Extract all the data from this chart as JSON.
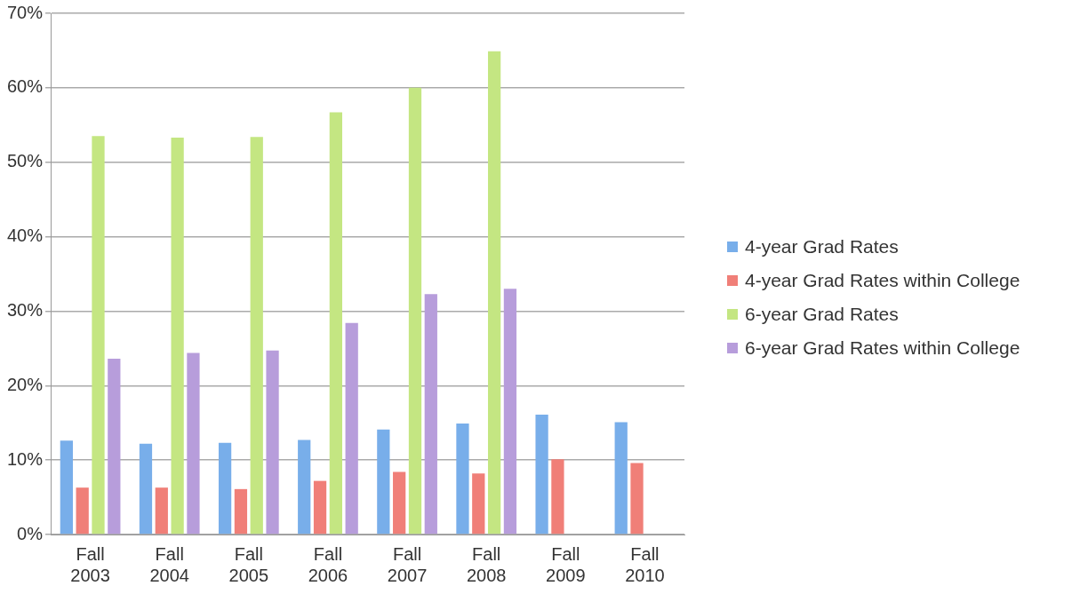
{
  "chart_data": {
    "type": "bar",
    "categories": [
      "Fall 2003",
      "Fall 2004",
      "Fall 2005",
      "Fall 2006",
      "Fall 2007",
      "Fall 2008",
      "Fall 2009",
      "Fall 2010"
    ],
    "series": [
      {
        "name": "4-year Grad Rates",
        "color": "#78aeea",
        "values": [
          12.6,
          12.2,
          12.3,
          12.7,
          14.1,
          14.9,
          16.1,
          15.1
        ]
      },
      {
        "name": "4-year Grad Rates within College",
        "color": "#f07f78",
        "values": [
          6.3,
          6.3,
          6.1,
          7.2,
          8.4,
          8.2,
          10.1,
          9.6
        ]
      },
      {
        "name": "6-year Grad Rates",
        "color": "#c4e682",
        "values": [
          53.5,
          53.3,
          53.4,
          56.7,
          60.0,
          64.9,
          null,
          null
        ]
      },
      {
        "name": "6-year Grad Rates within College",
        "color": "#b79ddb",
        "values": [
          23.6,
          24.4,
          24.7,
          28.4,
          32.3,
          33.0,
          null,
          null
        ]
      }
    ],
    "ylim": [
      0,
      70
    ],
    "yticks": [
      {
        "value": 0,
        "label": "0%"
      },
      {
        "value": 10,
        "label": "10%"
      },
      {
        "value": 20,
        "label": "20%"
      },
      {
        "value": 30,
        "label": "30%"
      },
      {
        "value": 40,
        "label": "40%"
      },
      {
        "value": 50,
        "label": "50%"
      },
      {
        "value": 60,
        "label": "60%"
      },
      {
        "value": 70,
        "label": "70%"
      }
    ],
    "grid": "y",
    "legend": "right"
  }
}
